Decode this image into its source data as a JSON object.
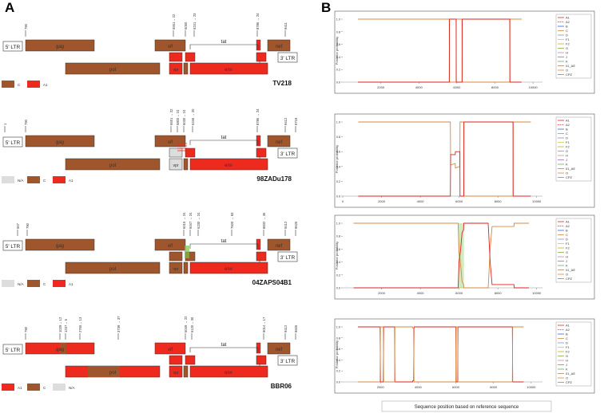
{
  "panels": {
    "a_label": "A",
    "b_label": "B"
  },
  "colors": {
    "subtype_c": "#a0562c",
    "subtype_a1": "#ee2a1e",
    "na": "#dddddd",
    "plot_orange": "#d48a3c",
    "plot_red": "#dd2222",
    "plot_green": "#7cc24a"
  },
  "genome_labels": {
    "ltr5": "5' LTR",
    "ltr3": "3' LTR",
    "gag": "gag",
    "pol": "pol",
    "vif": "vif",
    "vpr": "vpr",
    "vpu": "vpu",
    "env": "env",
    "nef": "nef",
    "tat": "tat",
    "rev": "rev"
  },
  "isolates": [
    {
      "name": "TV218",
      "ticks": [
        "790",
        "5551→ 22",
        "6050",
        "6241 → 23",
        "8786 → 24",
        "9411"
      ],
      "legend": [
        {
          "label": "C",
          "color": "#a0562c"
        },
        {
          "label": "A1",
          "color": "#ee2a1e"
        }
      ]
    },
    {
      "name": "98ZADu178",
      "ticks": [
        "1",
        "790",
        "5551 → 22",
        "5800→ 24",
        "6030→ 24",
        "6246 → 20",
        "8786 → 24",
        "9412",
        "9719"
      ],
      "legend": [
        {
          "label": "N/A",
          "color": "#dddddd"
        },
        {
          "label": "C",
          "color": "#a0562c"
        },
        {
          "label": "A1",
          "color": "#ee2a1e"
        }
      ]
    },
    {
      "name": "04ZAPS04B1",
      "ticks": [
        "567",
        "790",
        "6015 → 24",
        "6047 → 24",
        "6230 → 24",
        "7600 → 93",
        "8832 → 36",
        "9412",
        "9625"
      ],
      "legend": [
        {
          "label": "N/A",
          "color": "#dddddd"
        },
        {
          "label": "C",
          "color": "#a0562c"
        },
        {
          "label": "A1",
          "color": "#ee2a1e"
        }
      ]
    },
    {
      "name": "BBR06",
      "ticks": [
        "790",
        "1029→ 12",
        "1237→ 6",
        "2765→ 13",
        "3739 → 37",
        "6049 → 22",
        "6120→ 30",
        "9014→ 17",
        "9412",
        "9605"
      ],
      "legend": [
        {
          "label": "A1",
          "color": "#ee2a1e"
        },
        {
          "label": "C",
          "color": "#a0562c"
        },
        {
          "label": "N/A",
          "color": "#dddddd"
        }
      ]
    }
  ],
  "chart_data": [
    {
      "type": "line",
      "title": "",
      "xlabel": "",
      "ylabel": "Posterior probability",
      "xlim": [
        0,
        10500
      ],
      "ylim": [
        0,
        1
      ],
      "xticks": [
        2000,
        4000,
        6000,
        8000,
        10000
      ],
      "yticks": [
        0.0,
        0.2,
        0.4,
        0.6,
        0.8,
        1.0
      ],
      "legend_position": "right",
      "legend": [
        "A1",
        "A2",
        "B",
        "C",
        "D",
        "F1",
        "F2",
        "G",
        "H",
        "J",
        "K",
        "01_AE",
        "O",
        "CPZ"
      ],
      "series": [
        {
          "name": "C",
          "x": [
            800,
            5600,
            5610,
            5960,
            5970,
            6270,
            6280,
            8780,
            8790,
            9400
          ],
          "y": [
            1,
            1,
            0,
            0,
            1,
            1,
            0,
            0,
            1,
            1
          ]
        },
        {
          "name": "A1",
          "x": [
            800,
            5600,
            5610,
            5960,
            5970,
            6270,
            6280,
            8780,
            8790,
            9400
          ],
          "y": [
            0,
            0,
            1,
            1,
            0,
            0,
            1,
            1,
            0,
            0
          ]
        }
      ]
    },
    {
      "type": "line",
      "title": "",
      "xlabel": "",
      "ylabel": "Posterior probability",
      "xlim": [
        0,
        10300
      ],
      "ylim": [
        0,
        1
      ],
      "xticks": [
        0,
        2000,
        4000,
        6000,
        8000,
        10000
      ],
      "yticks": [
        0.0,
        0.2,
        0.4,
        0.6,
        0.8,
        1.0
      ],
      "legend_position": "right",
      "legend": [
        "A1",
        "A2",
        "B",
        "C",
        "D",
        "F1",
        "F2",
        "G",
        "H",
        "J",
        "K",
        "01_AE",
        "O",
        "CPZ"
      ],
      "series": [
        {
          "name": "C",
          "x": [
            800,
            5550,
            5560,
            5800,
            5810,
            6040,
            6050,
            6240,
            6250,
            8780,
            8790,
            9700
          ],
          "y": [
            1,
            1,
            0.42,
            0.44,
            0.38,
            0.4,
            1,
            1,
            0,
            0,
            1,
            1
          ]
        },
        {
          "name": "A1",
          "x": [
            800,
            5550,
            5560,
            5800,
            5810,
            6040,
            6050,
            6240,
            6250,
            8780,
            8790,
            9700
          ],
          "y": [
            0,
            0,
            0.56,
            0.56,
            0.6,
            0.6,
            0,
            0,
            1,
            1,
            0,
            0
          ]
        }
      ]
    },
    {
      "type": "line",
      "title": "",
      "xlabel": "",
      "ylabel": "Posterior probability",
      "xlim": [
        0,
        10300
      ],
      "ylim": [
        0,
        1
      ],
      "xticks": [
        2000,
        4000,
        6000,
        8000,
        10000
      ],
      "yticks": [
        0.0,
        0.2,
        0.4,
        0.6,
        0.8,
        1.0
      ],
      "legend_position": "right",
      "legend": [
        "A1",
        "A2",
        "B",
        "C",
        "D",
        "F1",
        "F2",
        "G",
        "H",
        "J",
        "K",
        "01_AE",
        "O",
        "CPZ"
      ],
      "shaded_region": [
        5950,
        6250
      ],
      "series": [
        {
          "name": "C",
          "x": [
            560,
            5950,
            6000,
            6080,
            6150,
            6230,
            6240,
            7500,
            7550,
            7600,
            7700,
            8830,
            8840,
            9600
          ],
          "y": [
            1,
            1,
            0.55,
            0.35,
            0.1,
            0.05,
            0,
            0,
            0.3,
            0.6,
            0.95,
            0.95,
            1,
            1
          ]
        },
        {
          "name": "A1",
          "x": [
            560,
            5950,
            6000,
            6080,
            6150,
            6230,
            6240,
            7500,
            7550,
            7600,
            7700,
            8830,
            8840,
            9600
          ],
          "y": [
            0,
            0,
            0.4,
            0.6,
            0.85,
            0.9,
            1,
            1,
            0.7,
            0.4,
            0.05,
            0.05,
            0,
            0
          ]
        }
      ]
    },
    {
      "type": "line",
      "title": "",
      "xlabel": "Sequence position based on reference sequence",
      "ylabel": "Posterior probability",
      "xlim": [
        0,
        10600
      ],
      "ylim": [
        0,
        1
      ],
      "xticks": [
        2000,
        4000,
        6000,
        8000,
        10000
      ],
      "yticks": [
        0.0,
        0.2,
        0.4,
        0.6,
        0.8,
        1.0
      ],
      "legend_position": "right",
      "legend": [
        "A1",
        "A2",
        "B",
        "C",
        "D",
        "F1",
        "F2",
        "G",
        "H",
        "J",
        "K",
        "01_AE",
        "O",
        "CPZ"
      ],
      "series": [
        {
          "name": "A1",
          "x": [
            800,
            1980,
            2000,
            2150,
            2170,
            2750,
            2770,
            3700,
            3720,
            3760,
            3780,
            6000,
            6020,
            6100,
            6120,
            9000,
            9020,
            9600
          ],
          "y": [
            1,
            1,
            0,
            0,
            1,
            1,
            0,
            0,
            0.02,
            0.02,
            1,
            1,
            0,
            0,
            1,
            1,
            0,
            0
          ]
        },
        {
          "name": "C",
          "x": [
            800,
            1980,
            2000,
            2150,
            2170,
            2750,
            2770,
            3700,
            3720,
            3760,
            3780,
            6000,
            6020,
            6100,
            6120,
            9000,
            9020,
            9600
          ],
          "y": [
            0,
            0,
            1,
            1,
            0,
            0,
            1,
            1,
            0.98,
            0.98,
            0,
            0,
            1,
            1,
            0,
            0,
            1,
            1
          ]
        }
      ]
    }
  ]
}
